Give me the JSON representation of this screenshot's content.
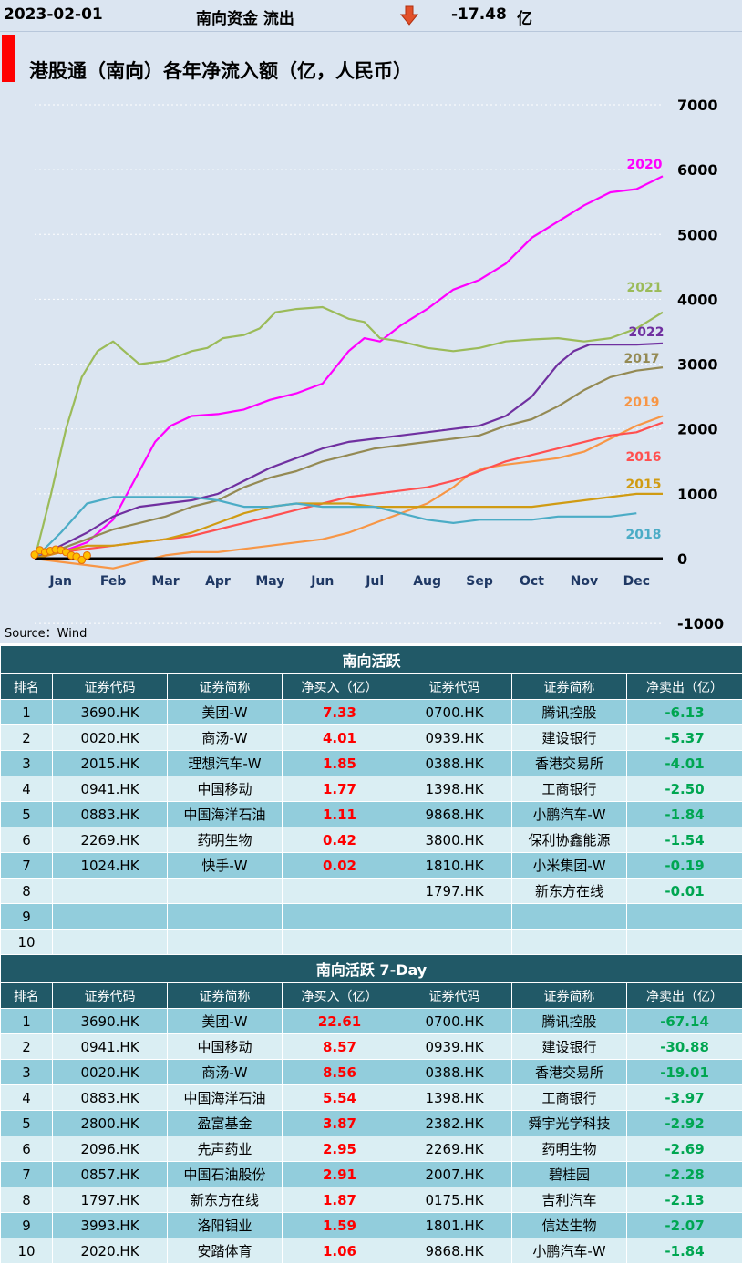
{
  "header": {
    "date": "2023-02-01",
    "flow_label": "南向资金 流出",
    "arrow_icon": "down-arrow-icon",
    "amount": "-17.48",
    "unit": "亿"
  },
  "chart_data": {
    "type": "line",
    "title": "港股通（南向）各年净流入额（亿，人民币）",
    "source": "Source：Wind",
    "categories": [
      "Jan",
      "Feb",
      "Mar",
      "Apr",
      "May",
      "Jun",
      "Jul",
      "Aug",
      "Sep",
      "Oct",
      "Nov",
      "Dec"
    ],
    "yticks": [
      "7000",
      "6000",
      "5000",
      "4000",
      "3000",
      "2000",
      "1000",
      "0",
      "-1000"
    ],
    "ylim": [
      -1000,
      7000
    ],
    "xlim": [
      0,
      12
    ],
    "grid": true,
    "series": [
      {
        "name": "2020",
        "color": "#ff00ff",
        "x": [
          0,
          0.5,
          1,
          1.5,
          2,
          2.3,
          2.6,
          3,
          3.5,
          4,
          4.5,
          5,
          5.5,
          6,
          6.3,
          6.6,
          7,
          7.5,
          8,
          8.5,
          9,
          9.5,
          10,
          10.5,
          11,
          11.5,
          12
        ],
        "y": [
          0,
          100,
          250,
          600,
          1350,
          1800,
          2050,
          2200,
          2230,
          2300,
          2450,
          2550,
          2700,
          3200,
          3400,
          3350,
          3600,
          3850,
          4150,
          4300,
          4550,
          4950,
          5200,
          5450,
          5650,
          5700,
          5900
        ]
      },
      {
        "name": "2021",
        "color": "#9bbb59",
        "x": [
          0,
          0.3,
          0.6,
          0.9,
          1.2,
          1.5,
          2,
          2.5,
          3,
          3.3,
          3.6,
          4,
          4.3,
          4.6,
          5,
          5.5,
          6,
          6.3,
          6.6,
          7,
          7.5,
          8,
          8.5,
          9,
          9.5,
          10,
          10.5,
          11,
          11.5,
          12
        ],
        "y": [
          0,
          950,
          2000,
          2800,
          3200,
          3350,
          3000,
          3050,
          3200,
          3250,
          3400,
          3450,
          3550,
          3800,
          3850,
          3880,
          3700,
          3650,
          3400,
          3350,
          3250,
          3200,
          3250,
          3350,
          3380,
          3400,
          3350,
          3400,
          3550,
          3800
        ]
      },
      {
        "name": "2022",
        "color": "#7030a0",
        "x": [
          0,
          0.5,
          1,
          1.5,
          2,
          2.5,
          3,
          3.5,
          4,
          4.5,
          5,
          5.5,
          6,
          6.5,
          7,
          7.5,
          8,
          8.5,
          9,
          9.5,
          10,
          10.3,
          10.6,
          11,
          11.5,
          12
        ],
        "y": [
          0,
          200,
          400,
          650,
          800,
          850,
          900,
          1000,
          1200,
          1400,
          1550,
          1700,
          1800,
          1850,
          1900,
          1950,
          2000,
          2050,
          2200,
          2500,
          3000,
          3200,
          3300,
          3300,
          3300,
          3320
        ]
      },
      {
        "name": "2017",
        "color": "#948a54",
        "x": [
          0,
          0.5,
          1,
          1.5,
          2,
          2.5,
          3,
          3.5,
          4,
          4.5,
          5,
          5.5,
          6,
          6.5,
          7,
          7.5,
          8,
          8.5,
          9,
          9.5,
          10,
          10.5,
          11,
          11.5,
          12
        ],
        "y": [
          0,
          150,
          300,
          450,
          550,
          650,
          800,
          900,
          1100,
          1250,
          1350,
          1500,
          1600,
          1700,
          1750,
          1800,
          1850,
          1900,
          2050,
          2150,
          2350,
          2600,
          2800,
          2900,
          2950
        ]
      },
      {
        "name": "2019",
        "color": "#f79646",
        "x": [
          0,
          0.5,
          1,
          1.5,
          2,
          2.5,
          3,
          3.5,
          4,
          4.5,
          5,
          5.5,
          6,
          6.5,
          7,
          7.5,
          8,
          8.3,
          8.6,
          9,
          9.5,
          10,
          10.5,
          11,
          11.5,
          12
        ],
        "y": [
          0,
          -50,
          -100,
          -150,
          -50,
          50,
          100,
          100,
          150,
          200,
          250,
          300,
          400,
          550,
          700,
          850,
          1100,
          1300,
          1400,
          1450,
          1500,
          1550,
          1650,
          1850,
          2050,
          2200
        ]
      },
      {
        "name": "2016",
        "color": "#ff5050",
        "x": [
          0,
          0.5,
          1,
          1.5,
          2,
          2.5,
          3,
          3.5,
          4,
          4.5,
          5,
          5.5,
          6,
          6.5,
          7,
          7.5,
          8,
          8.5,
          9,
          9.5,
          10,
          10.5,
          11,
          11.5,
          12
        ],
        "y": [
          0,
          100,
          150,
          200,
          250,
          300,
          350,
          450,
          550,
          650,
          750,
          850,
          950,
          1000,
          1050,
          1100,
          1200,
          1350,
          1500,
          1600,
          1700,
          1800,
          1900,
          1950,
          2100
        ]
      },
      {
        "name": "2015",
        "color": "#d09b13",
        "x": [
          0,
          0.5,
          1,
          1.5,
          2,
          2.5,
          3,
          3.5,
          4,
          4.5,
          5,
          5.5,
          6,
          6.5,
          7,
          7.5,
          8,
          8.5,
          9,
          9.5,
          10,
          10.5,
          11,
          11.5,
          12
        ],
        "y": [
          0,
          100,
          200,
          200,
          250,
          300,
          400,
          550,
          700,
          800,
          850,
          850,
          850,
          800,
          800,
          800,
          800,
          800,
          800,
          800,
          850,
          900,
          950,
          1000,
          1000
        ]
      },
      {
        "name": "2018",
        "color": "#4bacc6",
        "x": [
          0,
          0.5,
          1,
          1.5,
          2,
          2.5,
          3,
          3.5,
          4,
          4.5,
          5,
          5.5,
          6,
          6.5,
          7,
          7.5,
          8,
          8.5,
          9,
          9.5,
          10,
          10.5,
          11,
          11.5
        ],
        "y": [
          0,
          400,
          850,
          950,
          950,
          950,
          950,
          900,
          800,
          800,
          850,
          800,
          800,
          800,
          700,
          600,
          550,
          600,
          600,
          600,
          650,
          650,
          650,
          700
        ]
      }
    ],
    "highlight": {
      "name": "2023",
      "color": "#000000",
      "marker_color": "#ffc000",
      "x": [
        0,
        0.1,
        0.2,
        0.3,
        0.4,
        0.5,
        0.6,
        0.7,
        0.8,
        0.9,
        1.0
      ],
      "y": [
        60,
        130,
        100,
        120,
        140,
        130,
        100,
        50,
        30,
        -20,
        50
      ]
    }
  },
  "table_daily": {
    "title": "南向活跃",
    "columns": [
      "排名",
      "证券代码",
      "证券简称",
      "净买入（亿）",
      "证券代码",
      "证券简称",
      "净卖出（亿）"
    ],
    "rows": [
      [
        "1",
        "3690.HK",
        "美团-W",
        "7.33",
        "0700.HK",
        "腾讯控股",
        "-6.13"
      ],
      [
        "2",
        "0020.HK",
        "商汤-W",
        "4.01",
        "0939.HK",
        "建设银行",
        "-5.37"
      ],
      [
        "3",
        "2015.HK",
        "理想汽车-W",
        "1.85",
        "0388.HK",
        "香港交易所",
        "-4.01"
      ],
      [
        "4",
        "0941.HK",
        "中国移动",
        "1.77",
        "1398.HK",
        "工商银行",
        "-2.50"
      ],
      [
        "5",
        "0883.HK",
        "中国海洋石油",
        "1.11",
        "9868.HK",
        "小鹏汽车-W",
        "-1.84"
      ],
      [
        "6",
        "2269.HK",
        "药明生物",
        "0.42",
        "3800.HK",
        "保利协鑫能源",
        "-1.54"
      ],
      [
        "7",
        "1024.HK",
        "快手-W",
        "0.02",
        "1810.HK",
        "小米集团-W",
        "-0.19"
      ],
      [
        "8",
        "",
        "",
        "",
        "1797.HK",
        "新东方在线",
        "-0.01"
      ],
      [
        "9",
        "",
        "",
        "",
        "",
        "",
        ""
      ],
      [
        "10",
        "",
        "",
        "",
        "",
        "",
        ""
      ]
    ]
  },
  "table_7day": {
    "title": "南向活跃 7-Day",
    "columns": [
      "排名",
      "证券代码",
      "证券简称",
      "净买入（亿）",
      "证券代码",
      "证券简称",
      "净卖出（亿）"
    ],
    "rows": [
      [
        "1",
        "3690.HK",
        "美团-W",
        "22.61",
        "0700.HK",
        "腾讯控股",
        "-67.14"
      ],
      [
        "2",
        "0941.HK",
        "中国移动",
        "8.57",
        "0939.HK",
        "建设银行",
        "-30.88"
      ],
      [
        "3",
        "0020.HK",
        "商汤-W",
        "8.56",
        "0388.HK",
        "香港交易所",
        "-19.01"
      ],
      [
        "4",
        "0883.HK",
        "中国海洋石油",
        "5.54",
        "1398.HK",
        "工商银行",
        "-3.97"
      ],
      [
        "5",
        "2800.HK",
        "盈富基金",
        "3.87",
        "2382.HK",
        "舜宇光学科技",
        "-2.92"
      ],
      [
        "6",
        "2096.HK",
        "先声药业",
        "2.95",
        "2269.HK",
        "药明生物",
        "-2.69"
      ],
      [
        "7",
        "0857.HK",
        "中国石油股份",
        "2.91",
        "2007.HK",
        "碧桂园",
        "-2.28"
      ],
      [
        "8",
        "1797.HK",
        "新东方在线",
        "1.87",
        "0175.HK",
        "吉利汽车",
        "-2.13"
      ],
      [
        "9",
        "3993.HK",
        "洛阳钼业",
        "1.59",
        "1801.HK",
        "信达生物",
        "-2.07"
      ],
      [
        "10",
        "2020.HK",
        "安踏体育",
        "1.06",
        "9868.HK",
        "小鹏汽车-W",
        "-1.84"
      ]
    ]
  }
}
